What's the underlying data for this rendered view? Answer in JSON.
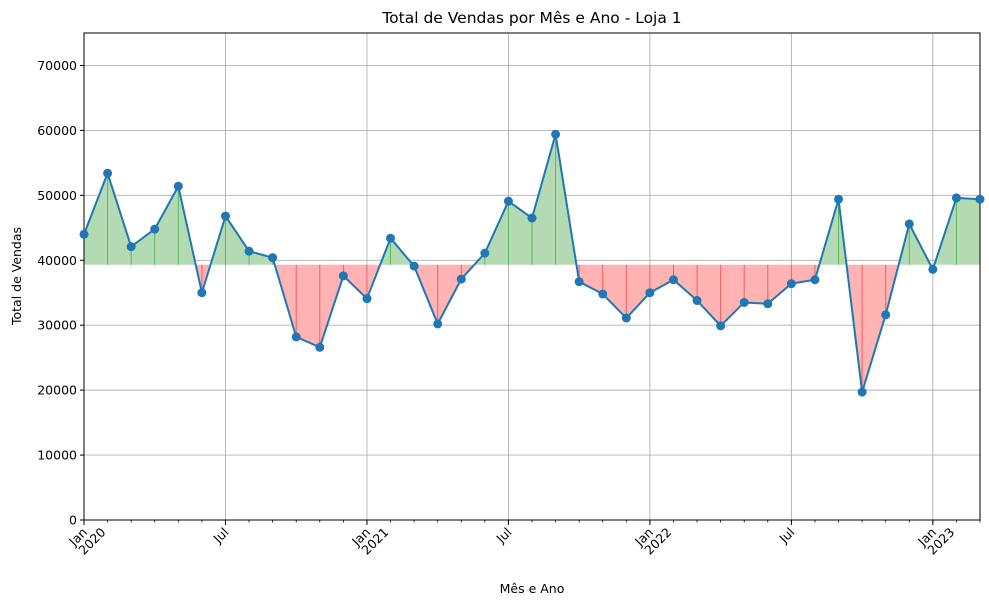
{
  "chart_data": {
    "type": "line",
    "title": "Total de Vendas por Mês e Ano - Loja 1",
    "xlabel": "Mês e Ano",
    "ylabel": "Total de Vendas",
    "ylim": [
      0,
      75000
    ],
    "yticks": [
      0,
      10000,
      20000,
      30000,
      40000,
      50000,
      60000,
      70000
    ],
    "baseline": 39300,
    "grid": true,
    "xrange": [
      "2020-01",
      "2023-03"
    ],
    "xticks": [
      {
        "date": "2020-01",
        "line1": "Jan",
        "line2": "2020"
      },
      {
        "date": "2020-07",
        "line1": "Jul",
        "line2": ""
      },
      {
        "date": "2021-01",
        "line1": "Jan",
        "line2": "2021"
      },
      {
        "date": "2021-07",
        "line1": "Jul",
        "line2": ""
      },
      {
        "date": "2022-01",
        "line1": "Jan",
        "line2": "2022"
      },
      {
        "date": "2022-07",
        "line1": "Jul",
        "line2": ""
      },
      {
        "date": "2023-01",
        "line1": "Jan",
        "line2": "2023"
      }
    ],
    "x": [
      "2020-01",
      "2020-02",
      "2020-03",
      "2020-04",
      "2020-05",
      "2020-06",
      "2020-07",
      "2020-08",
      "2020-09",
      "2020-10",
      "2020-11",
      "2020-12",
      "2021-01",
      "2021-02",
      "2021-03",
      "2021-04",
      "2021-05",
      "2021-06",
      "2021-07",
      "2021-08",
      "2021-09",
      "2021-10",
      "2021-11",
      "2021-12",
      "2022-01",
      "2022-02",
      "2022-03",
      "2022-04",
      "2022-05",
      "2022-06",
      "2022-07",
      "2022-08",
      "2022-09",
      "2022-10",
      "2022-11",
      "2022-12",
      "2023-01",
      "2023-02",
      "2023-03"
    ],
    "values": [
      44000,
      53400,
      42100,
      44800,
      51400,
      35000,
      46800,
      41400,
      40400,
      28200,
      26600,
      37600,
      34100,
      43400,
      39100,
      30200,
      37100,
      41100,
      49100,
      46500,
      59400,
      36700,
      34800,
      31100,
      35000,
      37000,
      33800,
      29900,
      33500,
      33300,
      36400,
      37000,
      49400,
      19700,
      31600,
      45600,
      38600,
      49600,
      49400
    ],
    "colors": {
      "line": "#1f77b4",
      "marker": "#1f77b4",
      "above_fill": "#b3dab3",
      "above_line": "#5cb85c",
      "below_fill": "#ffb3b3",
      "below_line": "#f06060",
      "grid": "#b0b0b0"
    }
  }
}
